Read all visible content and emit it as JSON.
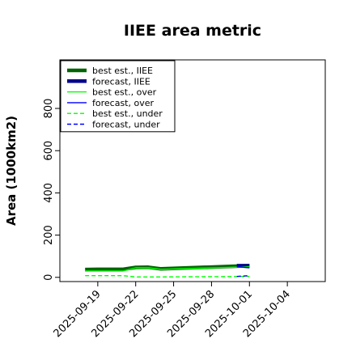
{
  "chart_data": {
    "type": "line",
    "title": "IIEE area metric",
    "xlabel": "",
    "ylabel": "Area (1000km2)",
    "ylim": [
      -20,
      1030
    ],
    "xlim": [
      "2025-09-16",
      "2025-10-07"
    ],
    "yticks": [
      0,
      200,
      400,
      600,
      800
    ],
    "xticks": [
      "2025-09-19",
      "2025-09-22",
      "2025-09-25",
      "2025-09-28",
      "2025-10-01",
      "2025-10-04"
    ],
    "highlighted_xtick": "2025-09-25",
    "highlight_color": "#228b22",
    "grid": false,
    "legend_position": "top-left",
    "series": [
      {
        "name": "best est., IIEE",
        "style": "solid",
        "color": "#006400",
        "width": "thick",
        "x": [
          "2025-09-18",
          "2025-09-19",
          "2025-09-20",
          "2025-09-21",
          "2025-09-22",
          "2025-09-23",
          "2025-09-24",
          "2025-10-01"
        ],
        "y": [
          37,
          38,
          38,
          38,
          47,
          48,
          40,
          55
        ]
      },
      {
        "name": "forecast, IIEE",
        "style": "solid",
        "color": "#00008b",
        "width": "thick",
        "x": [
          "2025-09-30",
          "2025-10-01"
        ],
        "y": [
          55,
          55
        ]
      },
      {
        "name": "best est., over",
        "style": "solid",
        "color": "#00ff00",
        "width": "thin",
        "x": [
          "2025-09-18",
          "2025-09-19",
          "2025-09-20",
          "2025-09-21",
          "2025-09-22",
          "2025-09-23",
          "2025-09-24",
          "2025-10-01"
        ],
        "y": [
          30,
          30,
          30,
          30,
          45,
          45,
          38,
          50
        ]
      },
      {
        "name": "forecast, over",
        "style": "solid",
        "color": "#0000ff",
        "width": "thin",
        "x": [
          "2025-09-30",
          "2025-10-01"
        ],
        "y": [
          50,
          45
        ]
      },
      {
        "name": "best est., under",
        "style": "dashed",
        "color": "#00ff00",
        "width": "thin",
        "x": [
          "2025-09-18",
          "2025-09-19",
          "2025-09-20",
          "2025-09-21",
          "2025-09-22",
          "2025-09-23",
          "2025-09-24",
          "2025-10-01"
        ],
        "y": [
          8,
          8,
          8,
          8,
          2,
          2,
          2,
          4
        ]
      },
      {
        "name": "forecast, under",
        "style": "dashed",
        "color": "#0000ff",
        "width": "thin",
        "x": [
          "2025-09-30",
          "2025-10-01"
        ],
        "y": [
          4,
          8
        ]
      }
    ]
  }
}
